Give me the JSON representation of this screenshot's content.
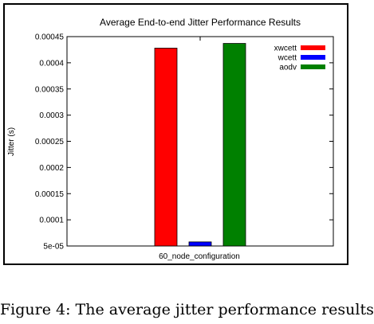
{
  "chart_data": {
    "type": "bar",
    "title": "Average End-to-end Jitter Performance Results",
    "xlabel": "",
    "ylabel": "Jitter (s)",
    "categories": [
      "60_node_configuration"
    ],
    "series": [
      {
        "name": "xwcett",
        "values": [
          0.000428
        ],
        "color": "#ff0000"
      },
      {
        "name": "wcett",
        "values": [
          5.78e-05
        ],
        "color": "#0000ff"
      },
      {
        "name": "aodv",
        "values": [
          0.000437
        ],
        "color": "#008000"
      }
    ],
    "ylim": [
      5e-05,
      0.00045
    ],
    "yticks": [
      "5e-05",
      "0.0001",
      "0.00015",
      "0.0002",
      "0.00025",
      "0.0003",
      "0.00035",
      "0.0004",
      "0.00045"
    ],
    "ytick_values": [
      5e-05,
      0.0001,
      0.00015,
      0.0002,
      0.00025,
      0.0003,
      0.00035,
      0.0004,
      0.00045
    ],
    "legend_position": "top-right",
    "grid": false
  },
  "caption": "Figure 4:  The average jitter performance results"
}
